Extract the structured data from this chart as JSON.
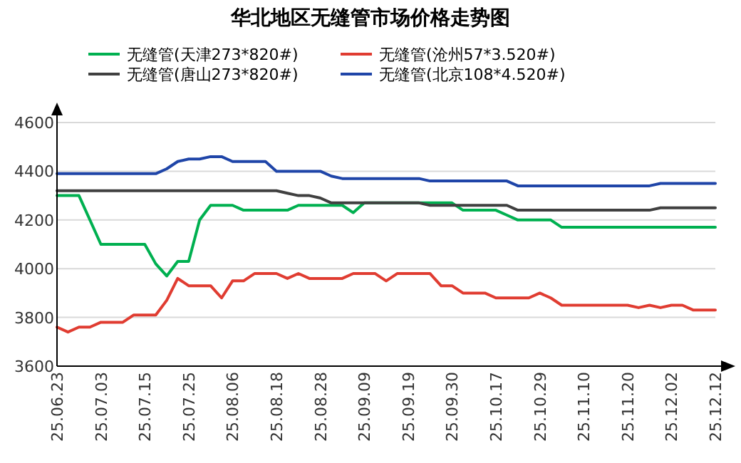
{
  "chart_data": {
    "type": "line",
    "title": "华北地区无缝管市场价格走势图",
    "categories": [
      "25.06.23",
      null,
      null,
      null,
      "25.07.03",
      null,
      null,
      null,
      "25.07.15",
      null,
      null,
      null,
      "25.07.25",
      null,
      null,
      null,
      "25.08.06",
      null,
      null,
      null,
      "25.08.18",
      null,
      null,
      null,
      "25.08.28",
      null,
      null,
      null,
      "25.09.09",
      null,
      null,
      null,
      "25.09.19",
      null,
      null,
      null,
      "25.09.30",
      null,
      null,
      null,
      "25.10.17",
      null,
      null,
      null,
      "25.10.29",
      null,
      null,
      null,
      "25.11.10",
      null,
      null,
      null,
      "25.11.20",
      null,
      null,
      null,
      "25.12.02",
      null,
      null,
      null,
      "25.12.12"
    ],
    "series": [
      {
        "name": "无缝管(天津273*820#)",
        "color": "#00b050",
        "values": [
          4300,
          4300,
          4300,
          4200,
          4100,
          4100,
          4100,
          4100,
          4100,
          4020,
          3970,
          4030,
          4030,
          4200,
          4260,
          4260,
          4260,
          4240,
          4240,
          4240,
          4240,
          4240,
          4260,
          4260,
          4260,
          4260,
          4260,
          4230,
          4270,
          4270,
          4270,
          4270,
          4270,
          4270,
          4270,
          4270,
          4270,
          4240,
          4240,
          4240,
          4240,
          4220,
          4200,
          4200,
          4200,
          4200,
          4170,
          4170,
          4170,
          4170,
          4170,
          4170,
          4170,
          4170,
          4170,
          4170,
          4170,
          4170,
          4170,
          4170,
          4170
        ]
      },
      {
        "name": "无缝管(沧州57*3.520#)",
        "color": "#e03c31",
        "values": [
          3760,
          3740,
          3760,
          3760,
          3780,
          3780,
          3780,
          3810,
          3810,
          3810,
          3870,
          3960,
          3930,
          3930,
          3930,
          3880,
          3950,
          3950,
          3980,
          3980,
          3980,
          3960,
          3980,
          3960,
          3960,
          3960,
          3960,
          3980,
          3980,
          3980,
          3950,
          3980,
          3980,
          3980,
          3980,
          3930,
          3930,
          3900,
          3900,
          3900,
          3880,
          3880,
          3880,
          3880,
          3900,
          3880,
          3850,
          3850,
          3850,
          3850,
          3850,
          3850,
          3850,
          3840,
          3850,
          3840,
          3850,
          3850,
          3830,
          3830,
          3830
        ]
      },
      {
        "name": "无缝管(唐山273*820#)",
        "color": "#404040",
        "values": [
          4320,
          4320,
          4320,
          4320,
          4320,
          4320,
          4320,
          4320,
          4320,
          4320,
          4320,
          4320,
          4320,
          4320,
          4320,
          4320,
          4320,
          4320,
          4320,
          4320,
          4320,
          4310,
          4300,
          4300,
          4290,
          4270,
          4270,
          4270,
          4270,
          4270,
          4270,
          4270,
          4270,
          4270,
          4260,
          4260,
          4260,
          4260,
          4260,
          4260,
          4260,
          4260,
          4240,
          4240,
          4240,
          4240,
          4240,
          4240,
          4240,
          4240,
          4240,
          4240,
          4240,
          4240,
          4240,
          4250,
          4250,
          4250,
          4250,
          4250,
          4250
        ]
      },
      {
        "name": "无缝管(北京108*4.520#)",
        "color": "#1f45a8",
        "values": [
          4390,
          4390,
          4390,
          4390,
          4390,
          4390,
          4390,
          4390,
          4390,
          4390,
          4410,
          4440,
          4450,
          4450,
          4460,
          4460,
          4440,
          4440,
          4440,
          4440,
          4400,
          4400,
          4400,
          4400,
          4400,
          4380,
          4370,
          4370,
          4370,
          4370,
          4370,
          4370,
          4370,
          4370,
          4360,
          4360,
          4360,
          4360,
          4360,
          4360,
          4360,
          4360,
          4340,
          4340,
          4340,
          4340,
          4340,
          4340,
          4340,
          4340,
          4340,
          4340,
          4340,
          4340,
          4340,
          4350,
          4350,
          4350,
          4350,
          4350,
          4350
        ]
      }
    ],
    "ylim": [
      3600,
      4600
    ],
    "yticks": [
      3600,
      3800,
      4000,
      4200,
      4400,
      4600
    ],
    "grid": "y",
    "legend": "top"
  }
}
